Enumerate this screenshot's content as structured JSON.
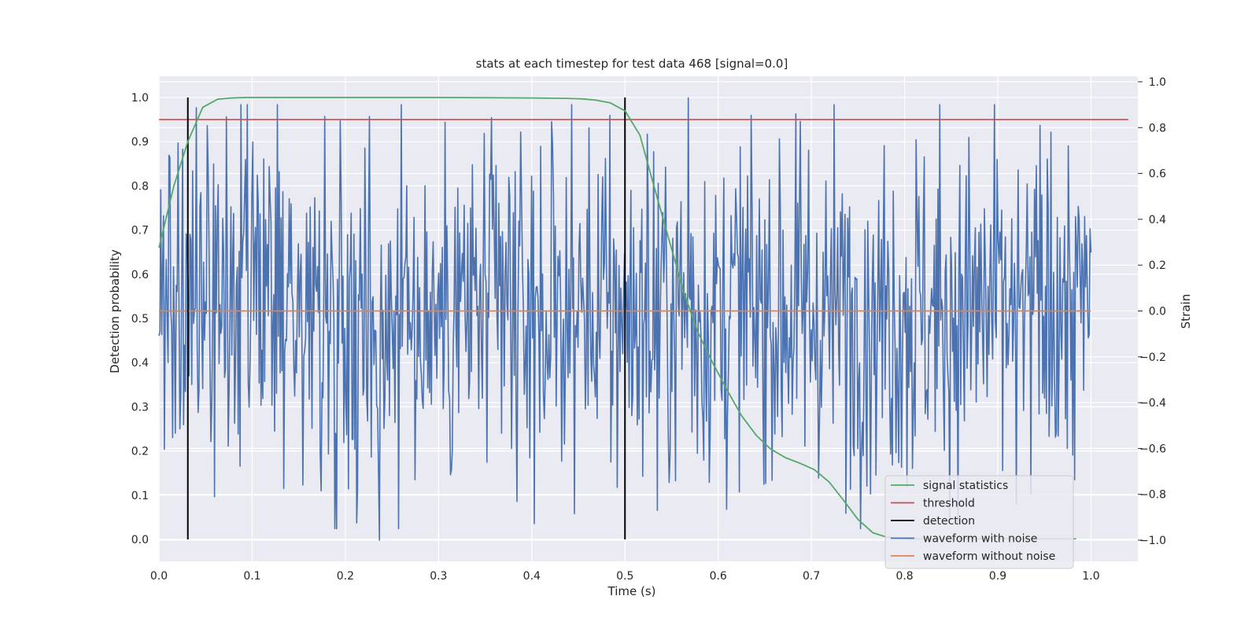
{
  "chart_data": {
    "type": "line",
    "title": "stats at each timestep for test data 468 [signal=0.0]",
    "xlabel": "Time (s)",
    "ylabel_left": "Detection probability",
    "ylabel_right": "Strain",
    "xlim": [
      0.0,
      1.05
    ],
    "ylim_left": [
      -0.045,
      1.045
    ],
    "ylim_right": [
      -1.1,
      1.02
    ],
    "x_ticks": [
      "0.0",
      "0.1",
      "0.2",
      "0.3",
      "0.4",
      "0.5",
      "0.6",
      "0.7",
      "0.8",
      "0.9",
      "1.0"
    ],
    "y_ticks_left": [
      "0.0",
      "0.1",
      "0.2",
      "0.3",
      "0.4",
      "0.5",
      "0.6",
      "0.7",
      "0.8",
      "0.9",
      "1.0"
    ],
    "y_ticks_right": [
      "−1.0",
      "−0.8",
      "−0.6",
      "−0.4",
      "−0.2",
      "0.0",
      "0.2",
      "0.4",
      "0.6",
      "0.8",
      "1.0"
    ],
    "grid": true,
    "legend_position": "lower-right",
    "colors": {
      "signal_statistics": "#55a868",
      "threshold": "#c44e52",
      "detection": "#000000",
      "waveform_with_noise": "#4c72b0",
      "waveform_without_noise": "#dd8452",
      "plot_background": "#eaeaf2",
      "grid": "#ffffff"
    },
    "series": [
      {
        "name": "signal statistics",
        "axis": "left",
        "x": [
          0.0,
          0.016,
          0.031,
          0.047,
          0.063,
          0.078,
          0.094,
          0.109,
          0.125,
          0.2,
          0.3,
          0.4,
          0.438,
          0.453,
          0.469,
          0.484,
          0.5,
          0.516,
          0.531,
          0.547,
          0.563,
          0.578,
          0.594,
          0.609,
          0.625,
          0.641,
          0.656,
          0.672,
          0.688,
          0.703,
          0.719,
          0.734,
          0.75,
          0.766,
          0.781,
          0.797,
          0.813,
          0.828,
          0.844,
          0.859,
          0.875,
          0.9,
          0.95,
          0.984
        ],
        "y": [
          0.66,
          0.8,
          0.9,
          0.978,
          0.996,
          0.999,
          1.0,
          1.0,
          1.0,
          1.0,
          1.0,
          0.999,
          0.998,
          0.997,
          0.994,
          0.988,
          0.97,
          0.915,
          0.8,
          0.68,
          0.56,
          0.47,
          0.4,
          0.34,
          0.28,
          0.235,
          0.205,
          0.185,
          0.172,
          0.158,
          0.13,
          0.09,
          0.045,
          0.015,
          0.005,
          0.002,
          0.001,
          0.001,
          0.001,
          0.001,
          0.001,
          0.001,
          0.001,
          0.001
        ]
      },
      {
        "name": "threshold",
        "axis": "left",
        "x": [
          0.0,
          1.04
        ],
        "y": [
          0.95,
          0.95
        ]
      },
      {
        "name": "detection",
        "axis": "left",
        "x": [
          0.031,
          0.5
        ],
        "y_range": [
          0.0,
          1.0
        ]
      },
      {
        "name": "waveform with noise",
        "axis": "right",
        "x_range": [
          0.0,
          1.0
        ],
        "samples": 1024,
        "y_range": [
          -1.0,
          1.0
        ],
        "notable_points": [
          {
            "x": 0.195,
            "y": 0.83
          },
          {
            "x": 0.237,
            "y": -1.0
          },
          {
            "x": 0.535,
            "y": -0.87
          },
          {
            "x": 0.568,
            "y": 0.93
          },
          {
            "x": 0.957,
            "y": 0.78
          },
          {
            "x": 0.92,
            "y": -0.84
          }
        ]
      },
      {
        "name": "waveform without noise",
        "axis": "right",
        "x": [
          0.0,
          1.0
        ],
        "y": [
          0.0,
          0.0
        ]
      }
    ],
    "legend": [
      "signal statistics",
      "threshold",
      "detection",
      "waveform with noise",
      "waveform without noise"
    ]
  }
}
